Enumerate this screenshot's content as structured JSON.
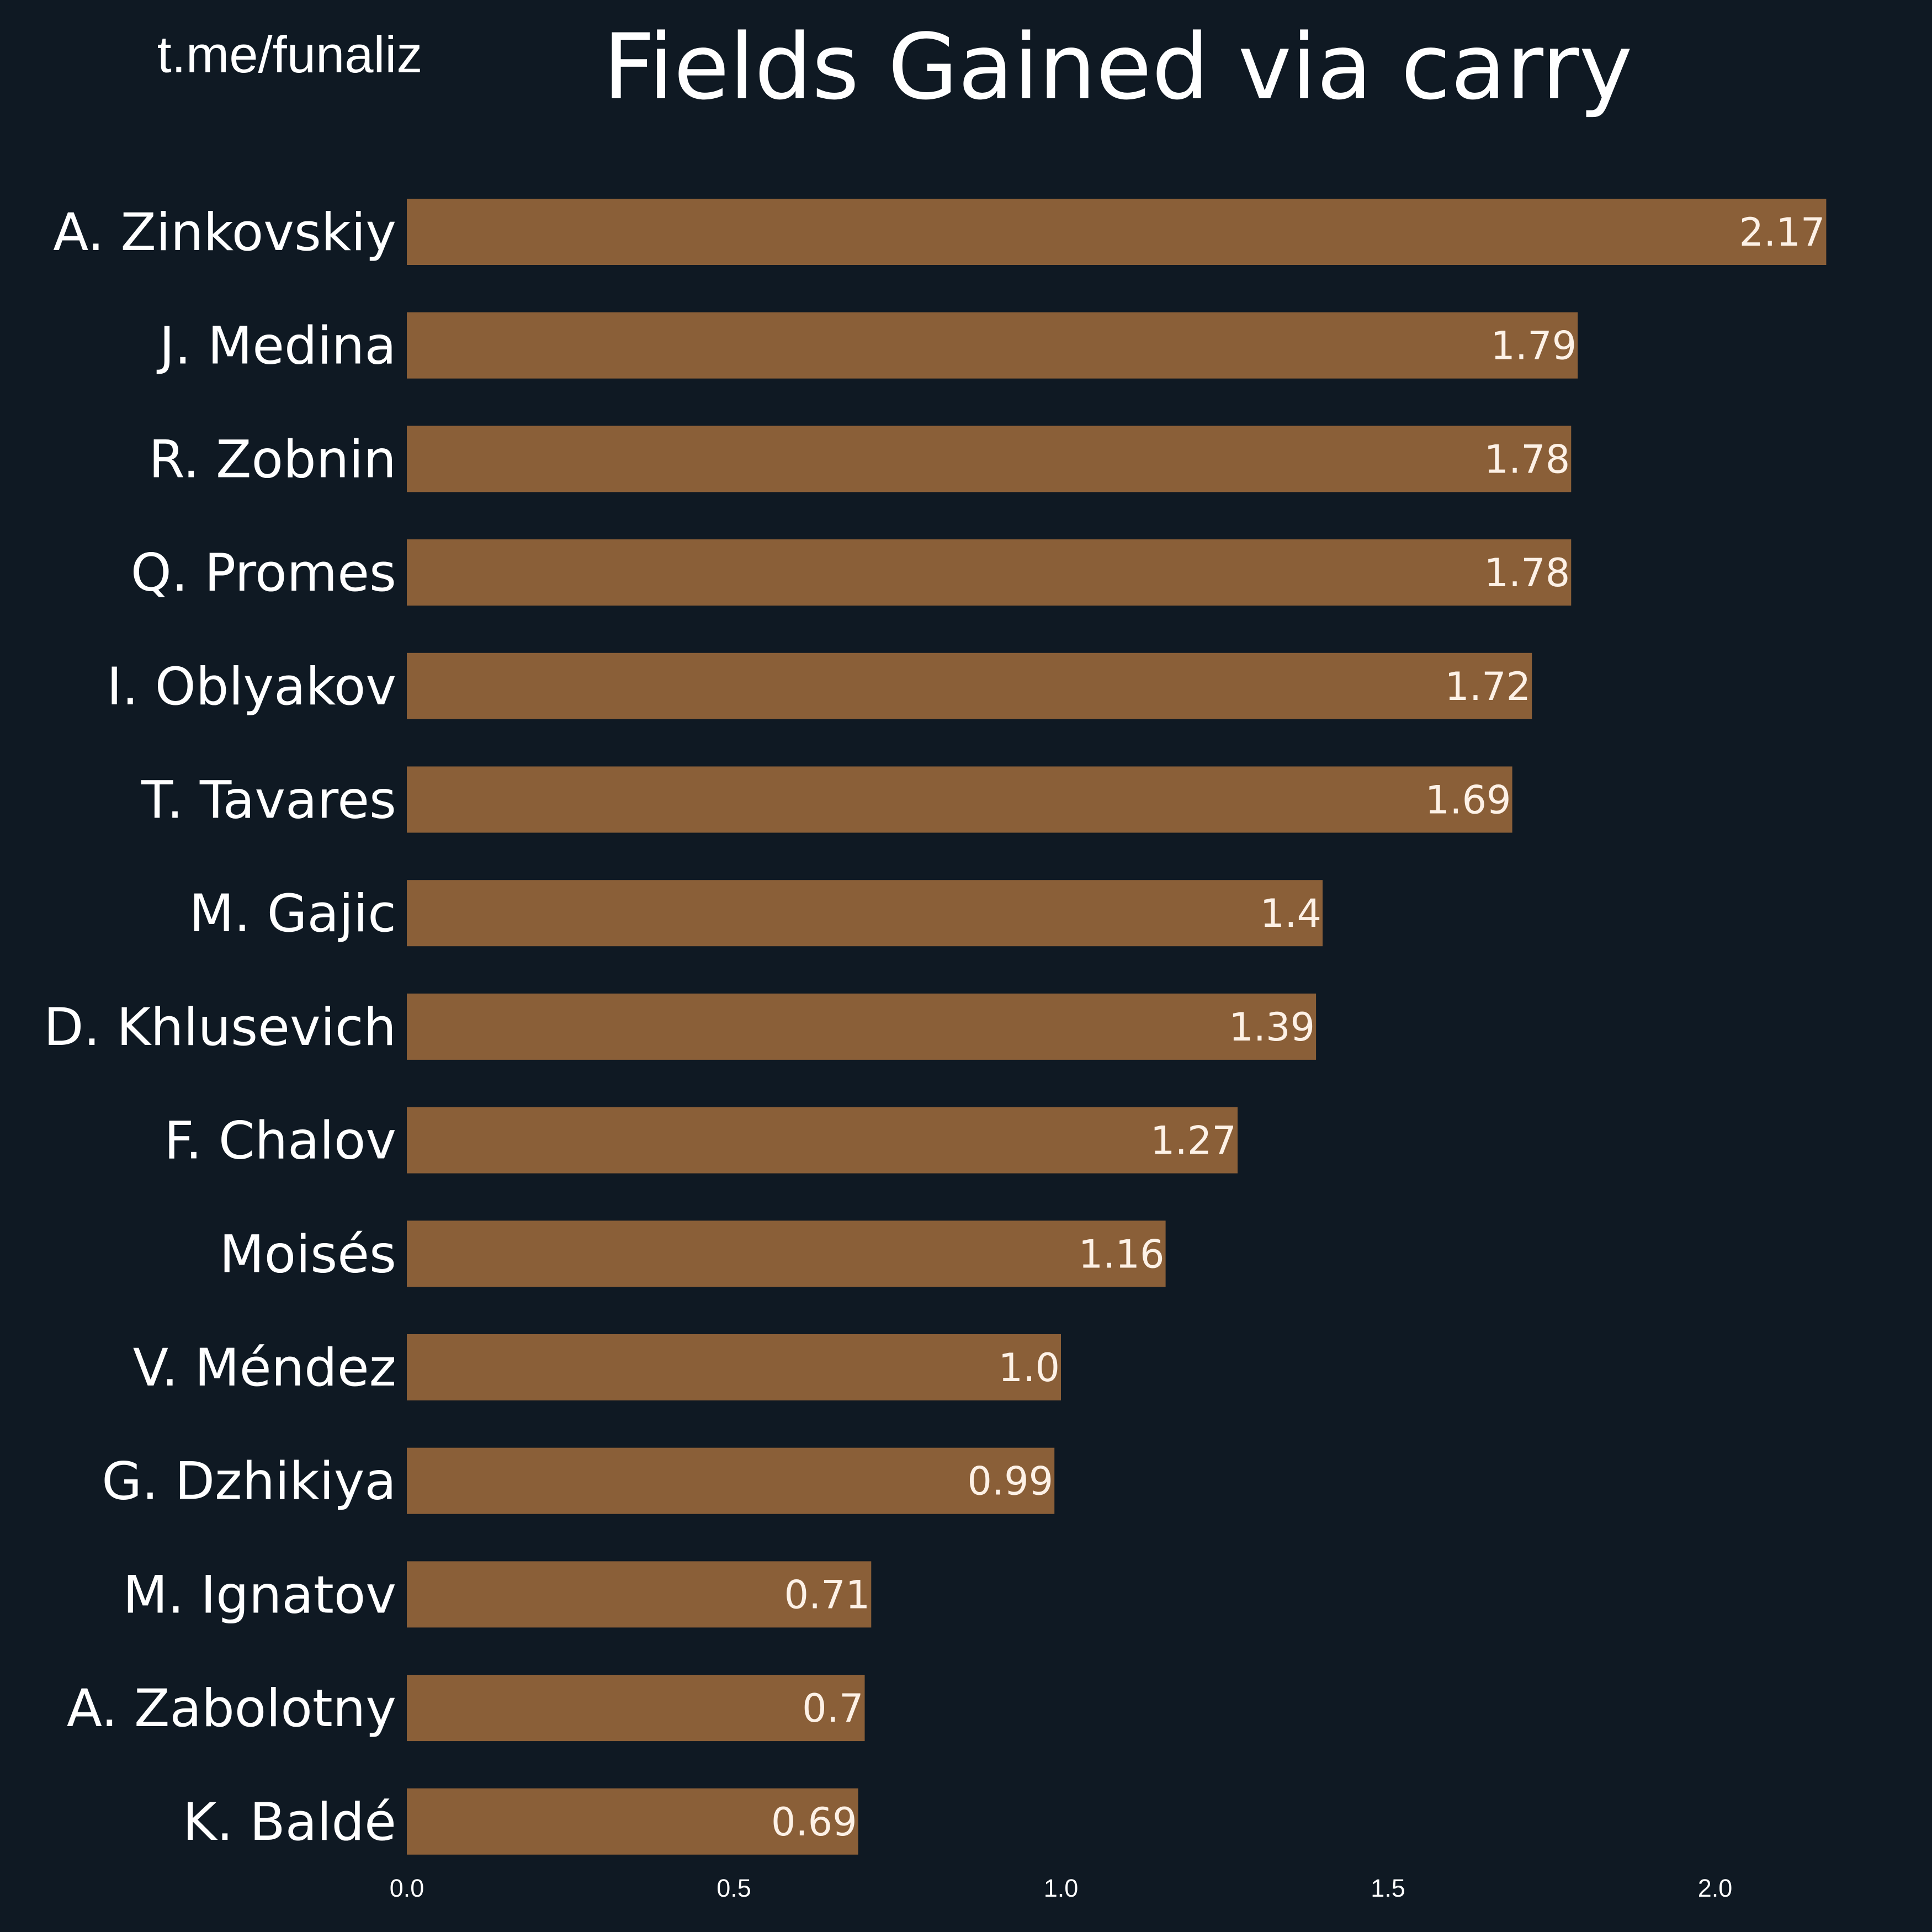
{
  "watermark": "t.me/funaliz",
  "colors": {
    "background": "#0f1923",
    "bar": "#8a5f38",
    "text": "#ffffff",
    "value_text": "#fdf1e6"
  },
  "chart_data": {
    "type": "bar",
    "orientation": "horizontal",
    "title": "Fields Gained via carry",
    "xlabel": "",
    "ylabel": "",
    "categories": [
      "A. Zinkovskiy",
      "J. Medina",
      "R. Zobnin",
      "Q. Promes",
      "I. Oblyakov",
      "T. Tavares",
      "M. Gajic",
      "D. Khlusevich",
      "F. Chalov",
      "Moisés",
      "V. Méndez",
      "G. Dzhikiya",
      "M. Ignatov",
      "A. Zabolotny",
      "K. Baldé"
    ],
    "values": [
      2.17,
      1.79,
      1.78,
      1.78,
      1.72,
      1.69,
      1.4,
      1.39,
      1.27,
      1.16,
      1.0,
      0.99,
      0.71,
      0.7,
      0.69
    ],
    "value_labels": [
      "2.17",
      "1.79",
      "1.78",
      "1.78",
      "1.72",
      "1.69",
      "1.4",
      "1.39",
      "1.27",
      "1.16",
      "1.0",
      "0.99",
      "0.71",
      "0.7",
      "0.69"
    ],
    "xticks": [
      "0.0",
      "0.5",
      "1.0",
      "1.5",
      "2.0"
    ],
    "xtick_values": [
      0,
      0.5,
      1.0,
      1.5,
      2.0
    ],
    "xlim": [
      0,
      2.17
    ],
    "grid": false,
    "legend": "none"
  }
}
